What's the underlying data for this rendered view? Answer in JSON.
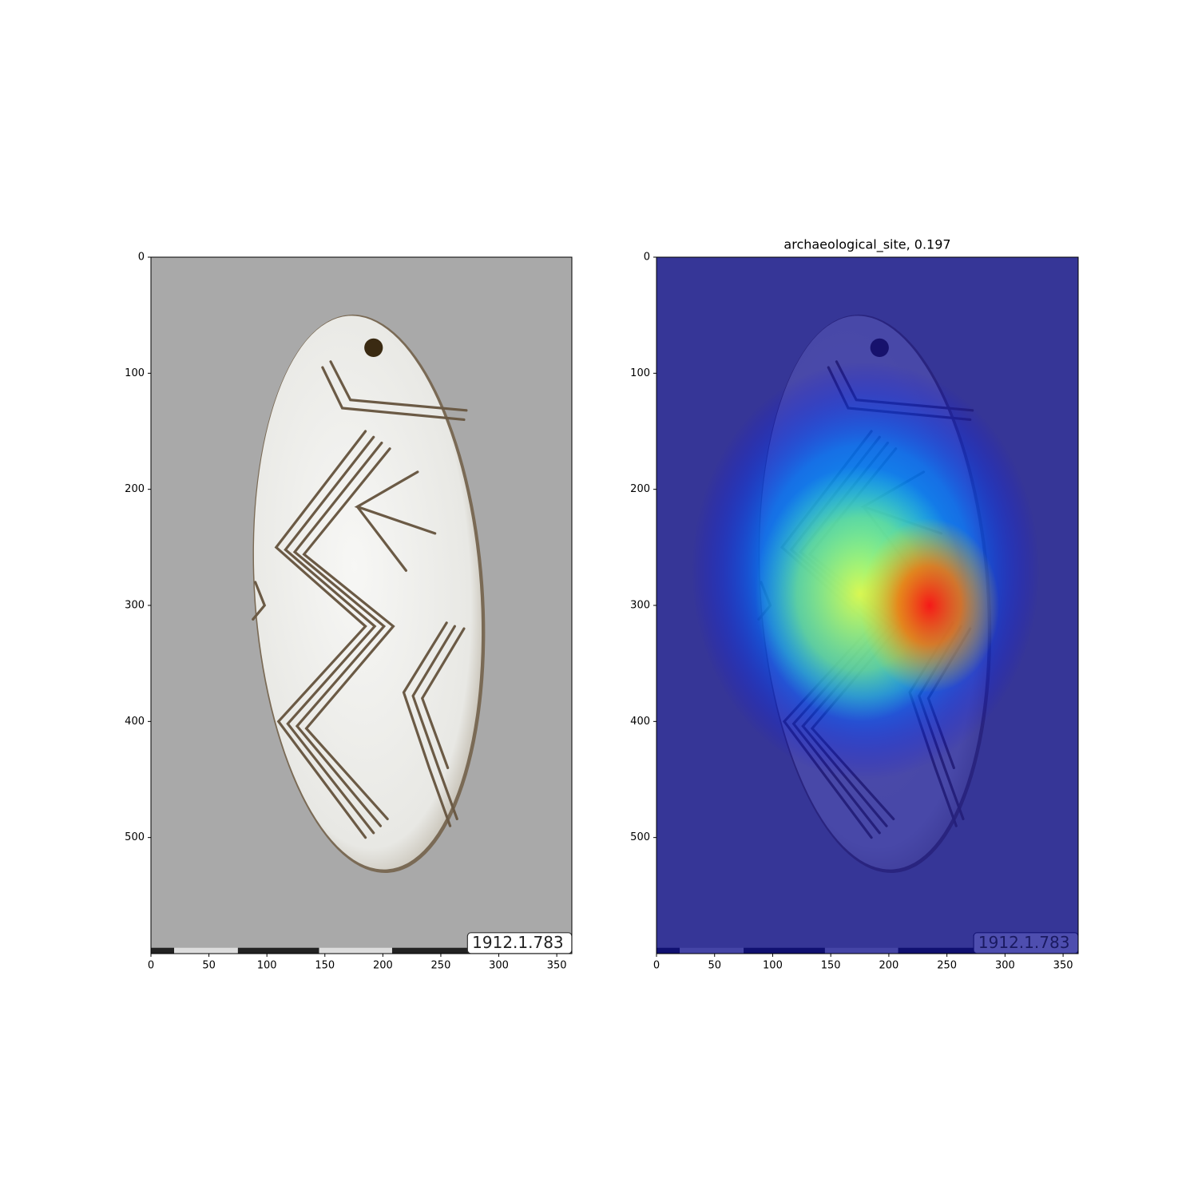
{
  "chart_data": [
    {
      "type": "image",
      "image_label": "1912.1.783",
      "xlim": [
        0,
        363
      ],
      "ylim": [
        600,
        0
      ],
      "xticks": [
        0,
        50,
        100,
        150,
        200,
        250,
        300,
        350
      ],
      "yticks": [
        0,
        100,
        200,
        300,
        400,
        500
      ]
    },
    {
      "type": "image",
      "title": "archaeological_site, 0.197",
      "image_label": "1912.1.783",
      "overlay": "jet",
      "xlim": [
        0,
        363
      ],
      "ylim": [
        600,
        0
      ],
      "xticks": [
        0,
        50,
        100,
        150,
        200,
        250,
        300,
        350
      ],
      "yticks": [
        0,
        100,
        200,
        300,
        400,
        500
      ]
    }
  ]
}
